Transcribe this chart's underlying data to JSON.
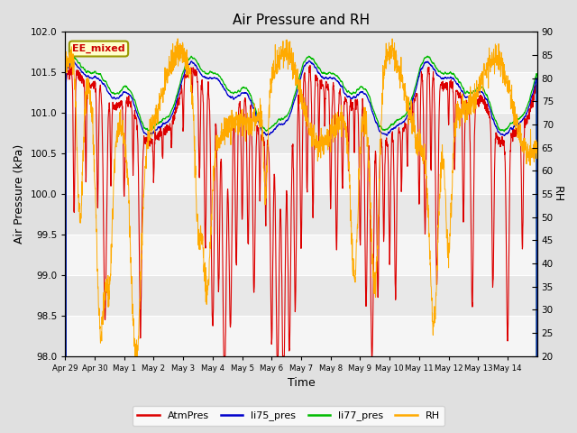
{
  "title": "Air Pressure and RH",
  "xlabel": "Time",
  "ylabel_left": "Air Pressure (kPa)",
  "ylabel_right": "RH",
  "annotation": "EE_mixed",
  "ylim_left": [
    98.0,
    102.0
  ],
  "ylim_right": [
    20,
    90
  ],
  "yticks_left": [
    98.0,
    98.5,
    99.0,
    99.5,
    100.0,
    100.5,
    101.0,
    101.5,
    102.0
  ],
  "yticks_right": [
    20,
    25,
    30,
    35,
    40,
    45,
    50,
    55,
    60,
    65,
    70,
    75,
    80,
    85,
    90
  ],
  "xtick_labels": [
    "Apr 29",
    "Apr 30",
    "May 1",
    "May 2",
    "May 3",
    "May 4",
    "May 5",
    "May 6",
    "May 7",
    "May 8",
    "May 9",
    "May 10",
    "May 11",
    "May 12",
    "May 13",
    "May 14"
  ],
  "n_days": 16,
  "colors": {
    "AtmPres": "#dd0000",
    "li75_pres": "#0000cc",
    "li77_pres": "#00bb00",
    "RH": "#ffaa00"
  },
  "fig_bg": "#e0e0e0",
  "plot_bg": "#e8e8e8",
  "grid_color": "#ffffff",
  "title_fontsize": 11,
  "axis_label_fontsize": 9,
  "tick_fontsize": 7.5,
  "annotation_fontsize": 8,
  "legend_fontsize": 8
}
